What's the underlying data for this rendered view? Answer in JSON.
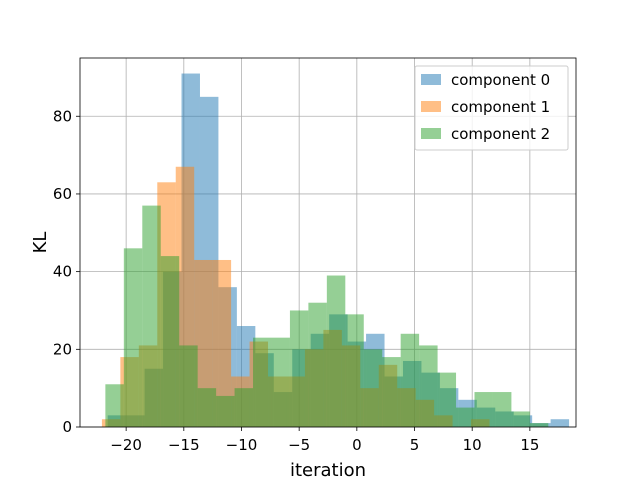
{
  "chart_data": {
    "type": "bar",
    "subtype": "overlapping-histogram",
    "title": "",
    "xlabel": "iteration",
    "ylabel": "KL",
    "xlim": [
      -24,
      19
    ],
    "ylim": [
      0,
      95
    ],
    "x_ticks": [
      -20,
      -15,
      -10,
      -5,
      0,
      5,
      10,
      15
    ],
    "x_tick_labels": [
      "−20",
      "−15",
      "−10",
      "−5",
      "0",
      "5",
      "10",
      "15"
    ],
    "y_ticks": [
      0,
      20,
      40,
      60,
      80
    ],
    "y_tick_labels": [
      "0",
      "20",
      "40",
      "60",
      "80"
    ],
    "grid": true,
    "legend_position": "top-right",
    "bar_opacity": 0.5,
    "series": [
      {
        "name": "component 0",
        "color": "#1f77b4",
        "bin_start": -21.6,
        "bin_width": 1.6,
        "values": [
          3,
          3,
          15,
          40,
          91,
          85,
          36,
          26,
          19,
          9,
          20,
          24,
          29,
          22,
          24,
          13,
          17,
          14,
          10,
          7,
          5,
          4,
          3,
          1,
          2
        ]
      },
      {
        "name": "component 1",
        "color": "#ff7f0e",
        "bin_start": -22.1,
        "bin_width": 1.6,
        "values": [
          2,
          18,
          21,
          63,
          67,
          43,
          43,
          13,
          22,
          13,
          13,
          20,
          25,
          21,
          10,
          16,
          10,
          7,
          3,
          0,
          2
        ]
      },
      {
        "name": "component 2",
        "color": "#2ca02c",
        "bin_start": -21.8,
        "bin_width": 1.6,
        "values": [
          11,
          46,
          57,
          44,
          21,
          10,
          8,
          10,
          23,
          23,
          30,
          32,
          39,
          29,
          20,
          18,
          24,
          21,
          14,
          5,
          9,
          9,
          4,
          1
        ]
      }
    ]
  }
}
